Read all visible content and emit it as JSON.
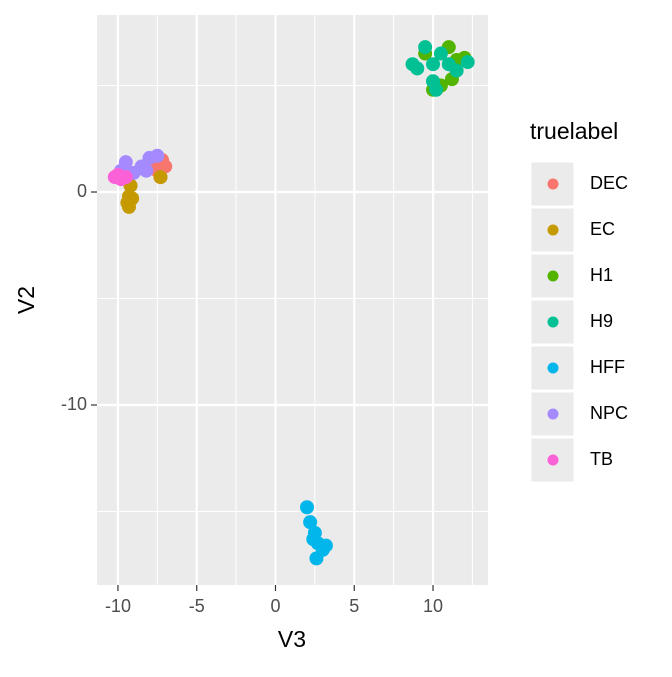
{
  "chart_data": {
    "type": "scatter",
    "x_label": "V3",
    "y_label": "V2",
    "legend_title": "truelabel",
    "legend": "right",
    "xlim": [
      -11.33,
      13.49
    ],
    "ylim": [
      -18.45,
      8.31
    ],
    "xticks": [
      -10,
      -5,
      0,
      5,
      10
    ],
    "yticks": [
      -10,
      0
    ],
    "x_minor_grid": [
      -7.5,
      -2.5,
      2.5,
      7.5,
      12.5
    ],
    "y_minor_grid": [
      -15,
      -5,
      5
    ],
    "grid": true,
    "series": [
      {
        "name": "DEC",
        "color": "#F8766D",
        "x": [
          -7.2,
          -7.5,
          -7.0,
          -8.0,
          -7.3,
          -7.8,
          -7.6
        ],
        "y": [
          1.5,
          1.0,
          1.2,
          1.1,
          0.7,
          1.4,
          1.6
        ]
      },
      {
        "name": "EC",
        "color": "#C49A00",
        "x": [
          -9.3,
          -9.2,
          -9.4,
          -9.1,
          -9.3,
          -7.3
        ],
        "y": [
          -0.2,
          0.3,
          -0.5,
          -0.3,
          -0.7,
          0.7
        ]
      },
      {
        "name": "H1",
        "color": "#53B400",
        "x": [
          11.0,
          11.5,
          12.0,
          10.5,
          11.2,
          10.0,
          9.5
        ],
        "y": [
          6.8,
          6.2,
          6.3,
          5.0,
          5.3,
          4.8,
          6.5
        ]
      },
      {
        "name": "H9",
        "color": "#00C094",
        "x": [
          10.0,
          10.5,
          9.0,
          11.0,
          10.0,
          9.5,
          11.5,
          10.2,
          12.2,
          8.7
        ],
        "y": [
          6.0,
          6.5,
          5.8,
          6.0,
          5.2,
          6.8,
          5.7,
          4.8,
          6.1,
          6.0
        ]
      },
      {
        "name": "HFF",
        "color": "#00B6EB",
        "x": [
          2.0,
          2.2,
          2.5,
          2.7,
          3.0,
          2.6,
          2.4,
          3.2
        ],
        "y": [
          -14.8,
          -15.5,
          -16.0,
          -16.5,
          -16.8,
          -17.2,
          -16.3,
          -16.6
        ]
      },
      {
        "name": "NPC",
        "color": "#A58AFF",
        "x": [
          -9.5,
          -8.0,
          -8.5,
          -9.0,
          -8.2,
          -9.8,
          -7.5
        ],
        "y": [
          1.4,
          1.6,
          1.2,
          0.9,
          1.0,
          1.0,
          1.7
        ]
      },
      {
        "name": "TB",
        "color": "#FB61D7",
        "x": [
          -10.2,
          -9.8,
          -10.0,
          -9.5
        ],
        "y": [
          0.7,
          0.6,
          0.8,
          0.7
        ]
      }
    ]
  }
}
